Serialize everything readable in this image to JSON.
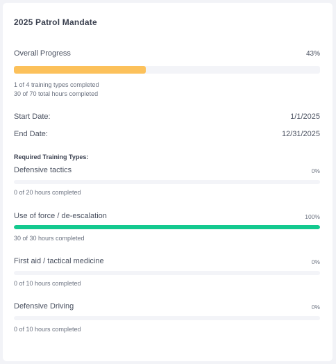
{
  "card": {
    "title": "2025 Patrol Mandate"
  },
  "overall": {
    "label": "Overall Progress",
    "percent_label": "43%",
    "progress": 0.43,
    "bar_color": "#fcc15b",
    "types_summary": "1 of 4 training types completed",
    "hours_summary": "30 of 70 total hours completed"
  },
  "dates": {
    "start_label": "Start Date:",
    "start_value": "1/1/2025",
    "end_label": "End Date:",
    "end_value": "12/31/2025"
  },
  "required": {
    "heading": "Required Training Types:",
    "items": [
      {
        "name": "Defensive tactics",
        "percent_label": "0%",
        "progress": 0.0,
        "hours": "0 of 20 hours completed",
        "color": "#f3f4f8"
      },
      {
        "name": "Use of force / de-escalation",
        "percent_label": "100%",
        "progress": 1.0,
        "hours": "30 of 30 hours completed",
        "color": "#14c98f"
      },
      {
        "name": "First aid / tactical medicine",
        "percent_label": "0%",
        "progress": 0.0,
        "hours": "0 of 10 hours completed",
        "color": "#f3f4f8"
      },
      {
        "name": "Defensive Driving",
        "percent_label": "0%",
        "progress": 0.0,
        "hours": "0 of 10 hours completed",
        "color": "#f3f4f8"
      }
    ]
  },
  "colors": {
    "track": "#f3f4f8",
    "accent_amber": "#fcc15b",
    "accent_green": "#14c98f"
  }
}
